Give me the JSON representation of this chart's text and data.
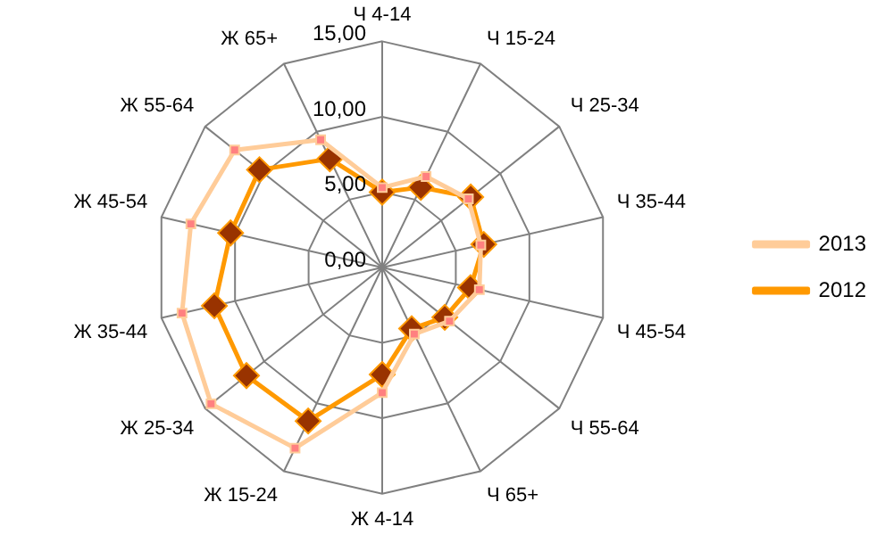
{
  "chart_data": {
    "type": "radar",
    "categories": [
      "Ч 4-14",
      "Ч 15-24",
      "Ч 25-34",
      "Ч 35-44",
      "Ч 45-54",
      "Ч 55-64",
      "Ч 65+",
      "Ж 4-14",
      "Ж 15-24",
      "Ж 25-34",
      "Ж 35-44",
      "Ж 45-54",
      "Ж 55-64",
      "Ж 65+"
    ],
    "series": [
      {
        "name": "2012",
        "color": "#ff9900",
        "marker": "diamond",
        "values": [
          5.0,
          5.9,
          7.5,
          6.9,
          6.0,
          5.3,
          4.5,
          7.1,
          11.3,
          11.5,
          11.4,
          10.3,
          10.4,
          8.0
        ]
      },
      {
        "name": "2013",
        "color": "#ffcc99",
        "marker": "square",
        "values": [
          5.3,
          6.7,
          7.3,
          6.7,
          6.6,
          5.7,
          4.9,
          8.3,
          13.3,
          14.5,
          13.6,
          13.0,
          12.5,
          9.4
        ]
      }
    ],
    "ylim": [
      0,
      15
    ],
    "yticks": [
      {
        "value": 0,
        "label": "0,00"
      },
      {
        "value": 5,
        "label": "5,00"
      },
      {
        "value": 10,
        "label": "10,00"
      },
      {
        "value": 15,
        "label": "15,00"
      }
    ],
    "grid": true,
    "legend": "right"
  }
}
